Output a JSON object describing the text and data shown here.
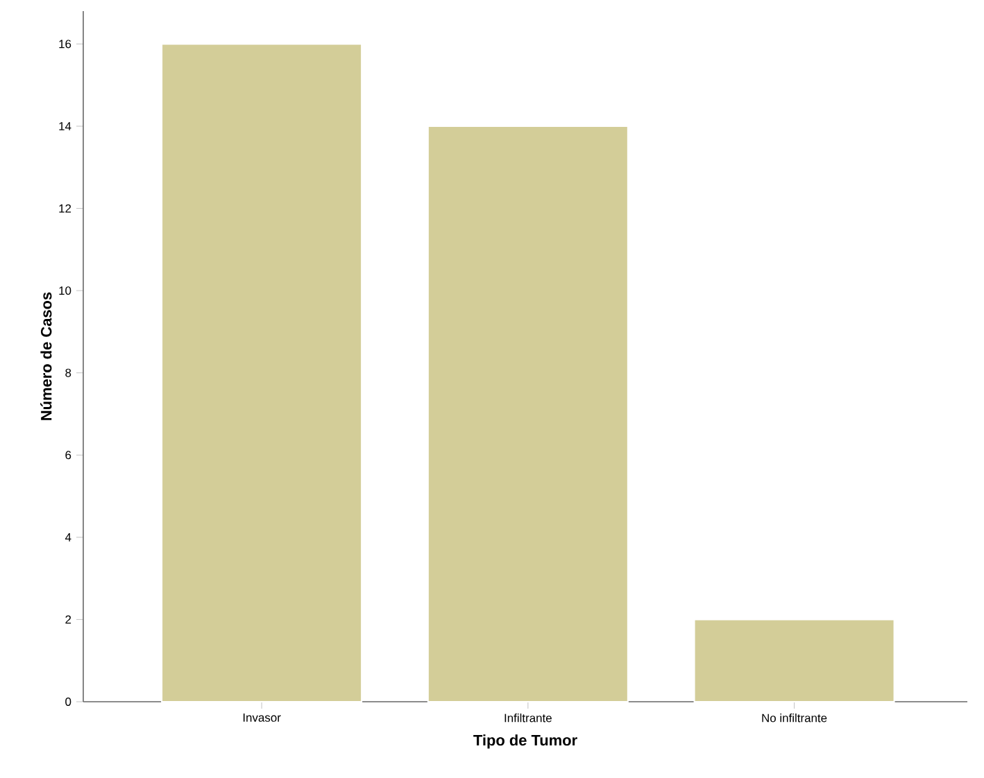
{
  "chart_data": {
    "type": "bar",
    "xlabel": "Tipo de Tumor",
    "ylabel": "Número de Casos",
    "categories": [
      "Invasor",
      "Infiltrante",
      "No infiltrante"
    ],
    "values": [
      16,
      14,
      2
    ],
    "color": "#d3cd98",
    "ylim": [
      0,
      16.8
    ],
    "yticks": [
      0,
      2,
      4,
      6,
      8,
      10,
      12,
      14,
      16
    ],
    "grid": false
  }
}
